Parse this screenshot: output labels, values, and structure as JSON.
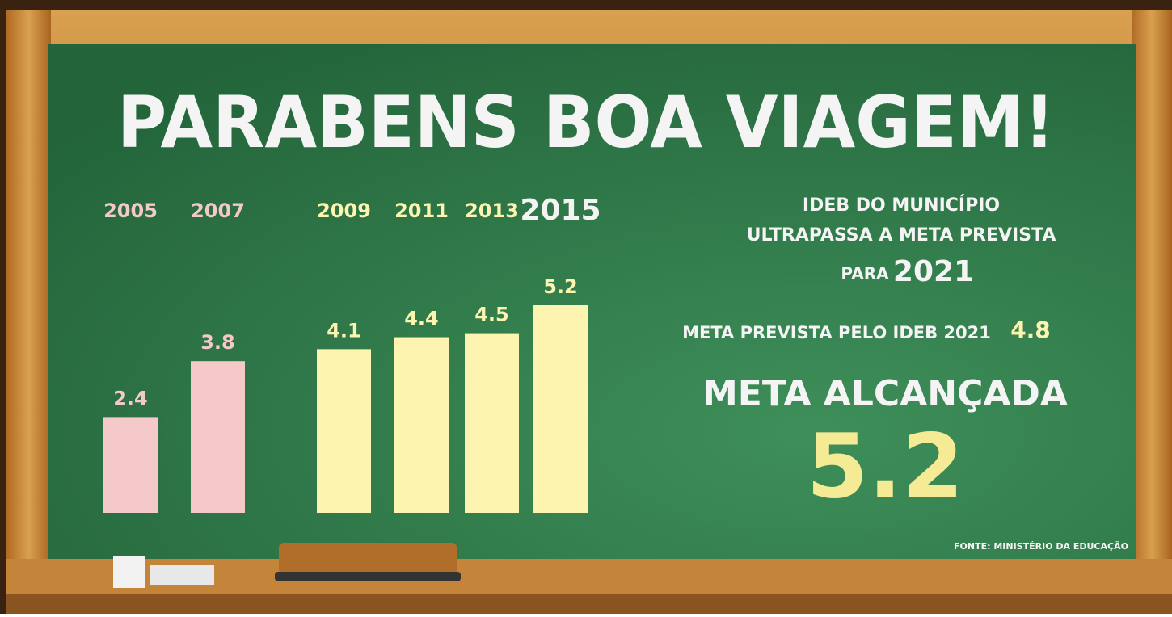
{
  "chart_data": {
    "type": "bar",
    "title": "PARABENS BOA VIAGEM!",
    "categories": [
      "2005",
      "2007",
      "2009",
      "2011",
      "2013",
      "2015"
    ],
    "values": [
      2.4,
      3.8,
      4.1,
      4.4,
      4.5,
      5.2
    ],
    "colors": [
      "#f5c9c9",
      "#f5c9c9",
      "#fdf4b0",
      "#fdf4b0",
      "#fdf4b0",
      "#fdf4b0"
    ],
    "annotations": {
      "line1": "IDEB DO MUNICÍPIO",
      "line2": "ULTRAPASSA A META PREVISTA",
      "para": "PARA",
      "year": "2021",
      "meta_text": "META PREVISTA PELO IDEB 2021",
      "meta_value": "4.8",
      "reached_text": "META ALCANÇADA",
      "reached_value": "5.2",
      "source": "FONTE: MINISTÉRIO DA EDUCAÇÃO"
    }
  }
}
